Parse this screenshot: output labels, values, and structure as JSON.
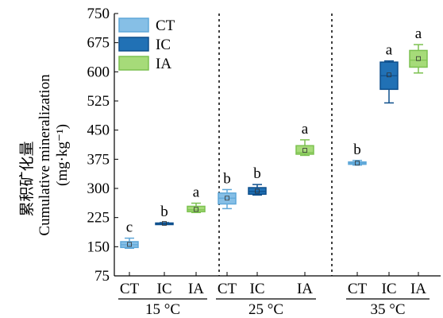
{
  "chart_data": {
    "type": "box",
    "ylabel_cn": "累积矿化量",
    "ylabel_en": "Cumulative mineralization",
    "yunit": "(mg·kg⁻¹)",
    "ylim": [
      75,
      750
    ],
    "yticks": [
      75,
      150,
      225,
      300,
      375,
      450,
      525,
      600,
      675,
      750
    ],
    "grid": false,
    "legend_position": "top-left",
    "series": [
      {
        "name": "CT",
        "color": "#86bfe6",
        "edge": "#5ea7d8"
      },
      {
        "name": "IC",
        "color": "#2171b5",
        "edge": "#0e4f8c"
      },
      {
        "name": "IA",
        "color": "#a6db79",
        "edge": "#7cc150"
      }
    ],
    "groups": [
      {
        "label": "15 °C",
        "boxes": [
          {
            "category": "CT",
            "min": 146,
            "q1": 148,
            "median": 155,
            "mean": 156,
            "q3": 163,
            "max": 172,
            "letter": "c"
          },
          {
            "category": "IC",
            "min": 208,
            "q1": 209,
            "median": 210,
            "mean": 210,
            "q3": 211,
            "max": 212,
            "letter": "b"
          },
          {
            "category": "IA",
            "min": 238,
            "q1": 240,
            "median": 245,
            "mean": 246,
            "q3": 254,
            "max": 262,
            "letter": "a"
          }
        ]
      },
      {
        "label": "25 °C",
        "boxes": [
          {
            "category": "CT",
            "min": 248,
            "q1": 260,
            "median": 275,
            "mean": 275,
            "q3": 288,
            "max": 297,
            "letter": "b"
          },
          {
            "category": "IC",
            "min": 283,
            "q1": 285,
            "median": 292,
            "mean": 293,
            "q3": 302,
            "max": 310,
            "letter": "b"
          },
          {
            "category": "IA",
            "min": 385,
            "q1": 388,
            "median": 392,
            "mean": 398,
            "q3": 410,
            "max": 425,
            "letter": "a"
          }
        ]
      },
      {
        "label": "35 °C",
        "boxes": [
          {
            "category": "CT",
            "min": 360,
            "q1": 362,
            "median": 365,
            "mean": 365,
            "q3": 368,
            "max": 372,
            "letter": "b"
          },
          {
            "category": "IC",
            "min": 520,
            "q1": 555,
            "median": 590,
            "mean": 592,
            "q3": 625,
            "max": 628,
            "letter": "a"
          },
          {
            "category": "IA",
            "min": 597,
            "q1": 612,
            "median": 630,
            "mean": 634,
            "q3": 655,
            "max": 670,
            "letter": "a"
          }
        ]
      }
    ]
  }
}
